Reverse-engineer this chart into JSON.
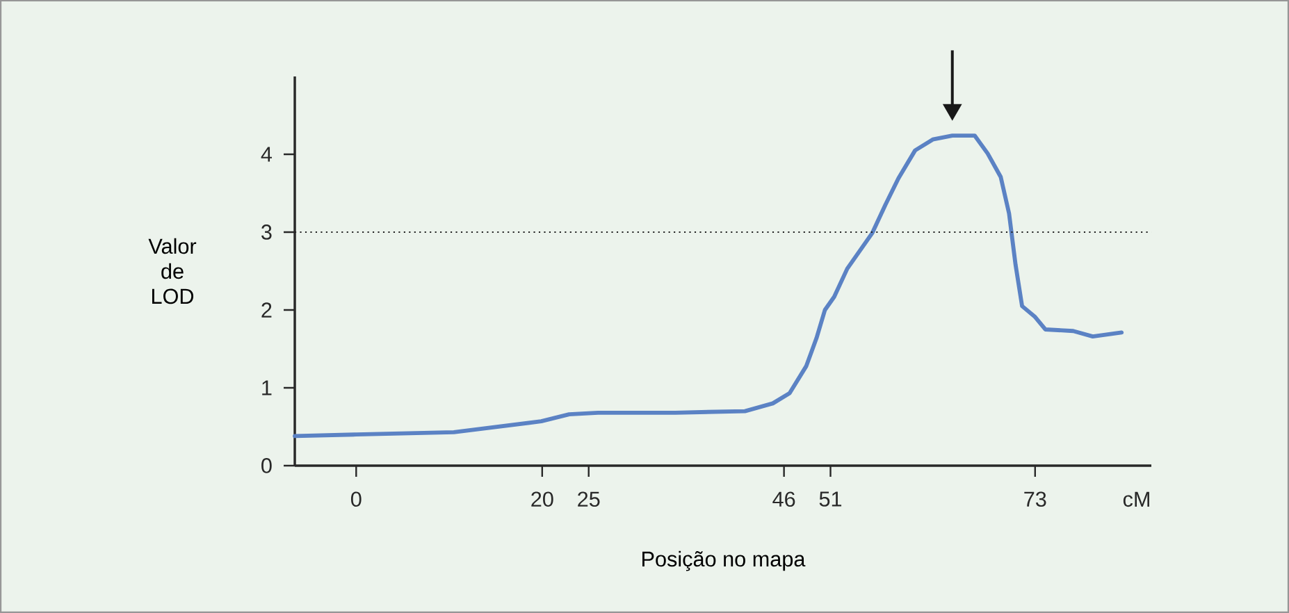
{
  "chart_data": {
    "type": "line",
    "xlabel": "Posição no mapa",
    "ylabel": "Valor de LOD",
    "annotations": [
      "cM"
    ],
    "x": [
      -6.6,
      0,
      10.5,
      19.9,
      22.9,
      26.0,
      34.3,
      41.8,
      44.8,
      46.6,
      48.4,
      49.5,
      50.4,
      51.4,
      52.8,
      55.5,
      56.9,
      58.3,
      60.1,
      62.0,
      64.1,
      66.5,
      67.9,
      69.3,
      70.2,
      70.9,
      71.6,
      73,
      74.1,
      77.1,
      79.2,
      82.3
    ],
    "series": [
      {
        "color": "#5b82c4",
        "values": [
          0.38,
          0.4,
          0.43,
          0.57,
          0.66,
          0.68,
          0.68,
          0.7,
          0.8,
          0.93,
          1.28,
          1.64,
          2.0,
          2.17,
          2.53,
          2.99,
          3.35,
          3.69,
          4.05,
          4.19,
          4.24,
          4.24,
          4.01,
          3.71,
          3.24,
          2.58,
          2.05,
          1.91,
          1.75,
          1.73,
          1.66,
          1.71
        ]
      }
    ],
    "xlim": [
      -6.6,
      85.5
    ],
    "ylim": [
      0,
      5
    ],
    "xticks": [
      0,
      20,
      25,
      46,
      51,
      73
    ],
    "yticks": [
      0,
      1,
      2,
      3,
      4
    ],
    "ref_lines": [
      {
        "axis": "y",
        "value": 3,
        "line_style": "dotted",
        "color": "#222222"
      }
    ],
    "grid": false,
    "marker": "none",
    "line_style": "solid"
  }
}
